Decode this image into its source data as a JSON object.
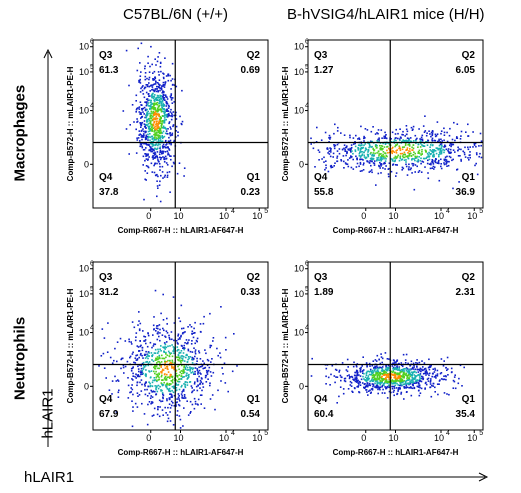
{
  "column_titles": [
    "C57BL/6N (+/+)",
    "B-hVSIG4/hLAIR1 mice (H/H)"
  ],
  "row_titles": [
    "Macrophages",
    "Neutrophils"
  ],
  "axis_captions": {
    "y": "hLAIR1",
    "x": "hLAIR1"
  },
  "plot_labels": {
    "x": "Comp-R667-H :: hLAIR1-AF647-H",
    "y": "Comp-B572-H :: mLAIR1-PE-H"
  },
  "colors": {
    "low": "#1020c8",
    "mid": "#18b0b0",
    "hi": "#50d020",
    "peak": "#ff8c00",
    "gate": "#000000"
  },
  "chart_data": [
    {
      "type": "scatter",
      "panel": "Macrophages / C57BL/6N (+/+)",
      "x_ticks": [
        "0",
        "10",
        "10",
        "10"
      ],
      "x_tick_exp": [
        "",
        "",
        "4",
        "5"
      ],
      "y_ticks": [
        "0",
        "10",
        "10",
        "10"
      ],
      "y_tick_exp": [
        "",
        "4",
        "5",
        "6"
      ],
      "quadrants": {
        "Q1": "0.23",
        "Q2": "0.69",
        "Q3": "61.3",
        "Q4": "37.8"
      },
      "population": {
        "center": [
          -0.25,
          0.3
        ],
        "spread": [
          0.12,
          0.35
        ],
        "description": "population spans Q3/Q4 at low hLAIR1"
      }
    },
    {
      "type": "scatter",
      "panel": "Macrophages / B-hVSIG4/hLAIR1 mice (H/H)",
      "x_ticks": [
        "0",
        "10",
        "10",
        "10"
      ],
      "x_tick_exp": [
        "",
        "",
        "4",
        "5"
      ],
      "y_ticks": [
        "0",
        "10",
        "10",
        "10"
      ],
      "y_tick_exp": [
        "",
        "4",
        "5",
        "6"
      ],
      "quadrants": {
        "Q1": "36.9",
        "Q2": "6.05",
        "Q3": "1.27",
        "Q4": "55.8"
      },
      "population": {
        "center": [
          0.1,
          -0.1
        ],
        "spread": [
          0.55,
          0.14
        ],
        "description": "population spreads horizontally across Q4/Q1"
      }
    },
    {
      "type": "scatter",
      "panel": "Neutrophils / C57BL/6N (+/+)",
      "x_ticks": [
        "0",
        "10",
        "10",
        "10"
      ],
      "x_tick_exp": [
        "",
        "",
        "4",
        "5"
      ],
      "y_ticks": [
        "0",
        "10",
        "10",
        "10"
      ],
      "y_tick_exp": [
        "",
        "4",
        "5",
        "6"
      ],
      "quadrants": {
        "Q1": "0.54",
        "Q2": "0.33",
        "Q3": "31.2",
        "Q4": "67.9"
      },
      "population": {
        "center": [
          -0.1,
          -0.05
        ],
        "spread": [
          0.3,
          0.3
        ],
        "description": "dense population near origin, mostly Q4"
      }
    },
    {
      "type": "scatter",
      "panel": "Neutrophils / B-hVSIG4/hLAIR1 mice (H/H)",
      "x_ticks": [
        "0",
        "10",
        "10",
        "10"
      ],
      "x_tick_exp": [
        "",
        "",
        "4",
        "5"
      ],
      "y_ticks": [
        "0",
        "10",
        "10",
        "10"
      ],
      "y_tick_exp": [
        "",
        "4",
        "5",
        "6"
      ],
      "quadrants": {
        "Q1": "35.4",
        "Q2": "2.31",
        "Q3": "1.89",
        "Q4": "60.4"
      },
      "population": {
        "center": [
          0.0,
          -0.15
        ],
        "spread": [
          0.35,
          0.11
        ],
        "description": "population spreads along Q4/Q1 border"
      }
    }
  ]
}
